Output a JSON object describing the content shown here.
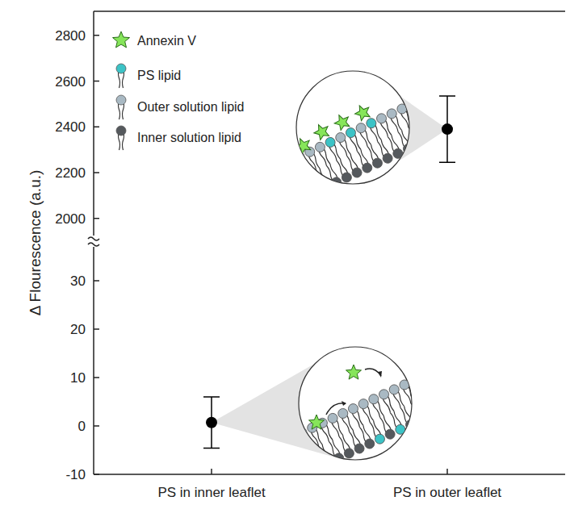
{
  "chart_data": {
    "type": "scatter",
    "y_label": "Δ Flourescence (a.u.)",
    "categories": [
      "PS in inner leaflet",
      "PS in outer leaflet"
    ],
    "values": [
      0.7,
      2390
    ],
    "errors": [
      5.3,
      145
    ],
    "color": "#000000",
    "marker": "circle",
    "segments": [
      {
        "ylim": [
          -10,
          37
        ],
        "yticks": [
          -10,
          0,
          10,
          20,
          30
        ]
      },
      {
        "ylim": [
          1925,
          2905
        ],
        "yticks": [
          2000,
          2200,
          2400,
          2600,
          2800
        ]
      }
    ],
    "legend": "upper left",
    "legend_items": [
      {
        "name": "Annexin V",
        "color": "#86e55a"
      },
      {
        "name": "PS lipid",
        "color": "#3cc3c6"
      },
      {
        "name": "Outer solution lipid",
        "color": "#a9b9c3"
      },
      {
        "name": "Inner solution lipid",
        "color": "#55595d"
      }
    ]
  }
}
